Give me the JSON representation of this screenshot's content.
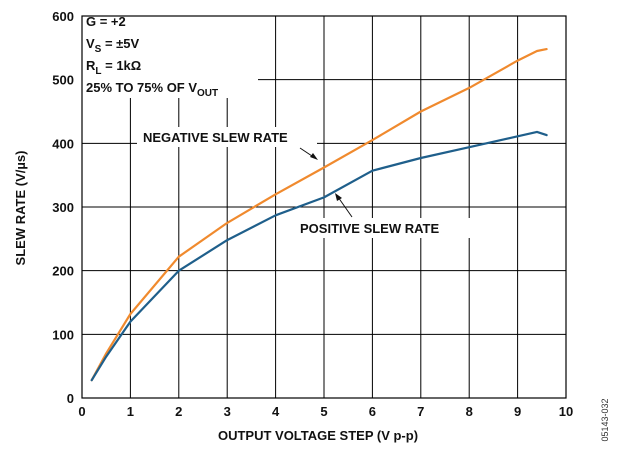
{
  "chart_data": {
    "type": "line",
    "xlabel": "OUTPUT VOLTAGE STEP (V p-p)",
    "ylabel": "SLEW RATE (V/µs)",
    "xlim": [
      0,
      10
    ],
    "ylim": [
      0,
      600
    ],
    "xticks": [
      "0",
      "1",
      "2",
      "3",
      "4",
      "5",
      "6",
      "7",
      "8",
      "9",
      "10"
    ],
    "yticks": [
      "0",
      "100",
      "200",
      "300",
      "400",
      "500",
      "600"
    ],
    "grid": true,
    "conditions": {
      "gain": {
        "main": "G = +2"
      },
      "supply": {
        "main": "V",
        "sub": "S",
        "rest": " = ±5V"
      },
      "load": {
        "main": "R",
        "sub": "L",
        "rest": " = 1kΩ"
      },
      "measure": {
        "main": "25% TO 75% OF V",
        "sub": "OUT"
      }
    },
    "series": [
      {
        "name": "NEGATIVE SLEW RATE",
        "color": "#F08A2E",
        "x": [
          0.2,
          0.5,
          1.0,
          2.0,
          3.0,
          4.0,
          5.0,
          6.0,
          7.0,
          8.0,
          9.0,
          9.4,
          9.6
        ],
        "y": [
          28,
          70,
          132,
          222,
          275,
          320,
          362,
          405,
          450,
          487,
          530,
          545,
          548
        ]
      },
      {
        "name": "POSITIVE SLEW RATE",
        "color": "#1F5F8B",
        "x": [
          0.2,
          0.5,
          1.0,
          2.0,
          3.0,
          4.0,
          5.0,
          6.0,
          7.0,
          8.0,
          9.0,
          9.4,
          9.6
        ],
        "y": [
          28,
          65,
          120,
          200,
          248,
          287,
          315,
          357,
          377,
          394,
          411,
          418,
          413
        ]
      }
    ],
    "annotations": [
      {
        "text": "NEGATIVE SLEW RATE",
        "series": 0
      },
      {
        "text": "POSITIVE SLEW RATE",
        "series": 1
      }
    ],
    "figure_id": "05143-032"
  }
}
